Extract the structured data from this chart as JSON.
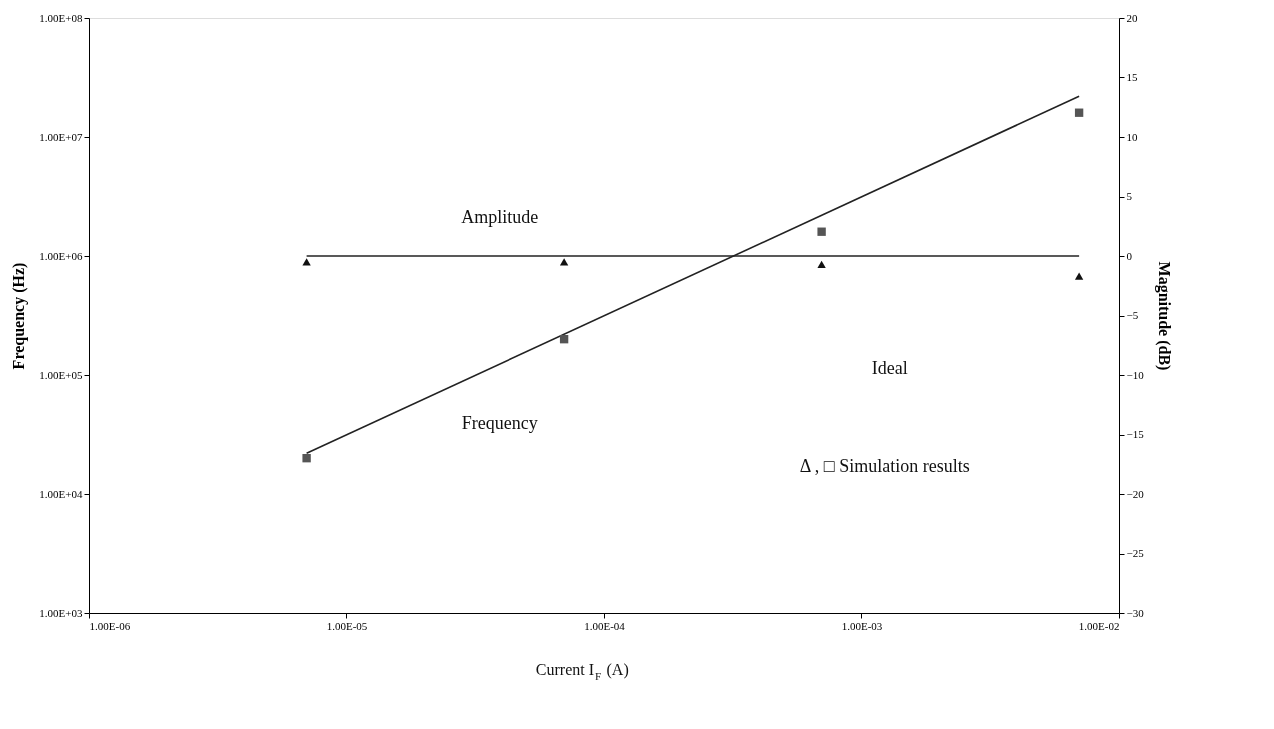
{
  "chart_data": {
    "type": "line",
    "xlabel": "Current I$_{F}$ (A)",
    "ylabel": "Frequency (Hz)",
    "y2label": "Magnitude (dB)",
    "log": "xy",
    "grid": false,
    "xlim": [
      1e-06,
      0.01
    ],
    "xticks": [
      {
        "value": 1e-06,
        "label": "1.00E-06"
      },
      {
        "value": 1e-05,
        "label": "1.00E-05"
      },
      {
        "value": 0.0001,
        "label": "1.00E-04"
      },
      {
        "value": 0.001,
        "label": "1.00E-03"
      },
      {
        "value": 0.01,
        "label": "1.00E-02"
      }
    ],
    "ylim": [
      1000.0,
      100000000.0
    ],
    "yticks": [
      {
        "value": 1000.0,
        "label": "1.00E+03"
      },
      {
        "value": 10000.0,
        "label": "1.00E+04"
      },
      {
        "value": 100000.0,
        "label": "1.00E+05"
      },
      {
        "value": 1000000.0,
        "label": "1.00E+06"
      },
      {
        "value": 10000000.0,
        "label": "1.00E+07"
      },
      {
        "value": 100000000.0,
        "label": "1.00E+08"
      }
    ],
    "y2lim": [
      -30,
      20
    ],
    "y2ticks": [
      -30,
      -25,
      -20,
      -15,
      -10,
      -5,
      0,
      5,
      10,
      15,
      20
    ],
    "series": [
      {
        "name": "Frequency",
        "x": [
          7e-06,
          0.007
        ],
        "values": [
          22000.0,
          22000000.0
        ],
        "color": "#222222",
        "marker": "none",
        "line_style": "solid"
      },
      {
        "type": "scatter",
        "x": [
          7e-06,
          7e-05,
          0.0007,
          0.007
        ],
        "values": [
          20000.0,
          200000.0,
          1600000.0,
          16000000.0
        ],
        "color": "#555555",
        "marker": "square"
      },
      {
        "name": "Amplitude",
        "axis": "y2",
        "x": [
          7e-06,
          0.007
        ],
        "values": [
          0,
          0
        ],
        "color": "#222222",
        "marker": "none",
        "line_style": "solid"
      },
      {
        "type": "scatter",
        "axis": "y2",
        "x": [
          7e-06,
          7e-05,
          0.0007,
          0.007
        ],
        "values": [
          -0.5,
          -0.5,
          -0.7,
          -1.7
        ],
        "color": "#111111",
        "marker": "triangle"
      }
    ],
    "annotations": [
      "Ideal",
      "Δ , □ Simulation results"
    ]
  }
}
